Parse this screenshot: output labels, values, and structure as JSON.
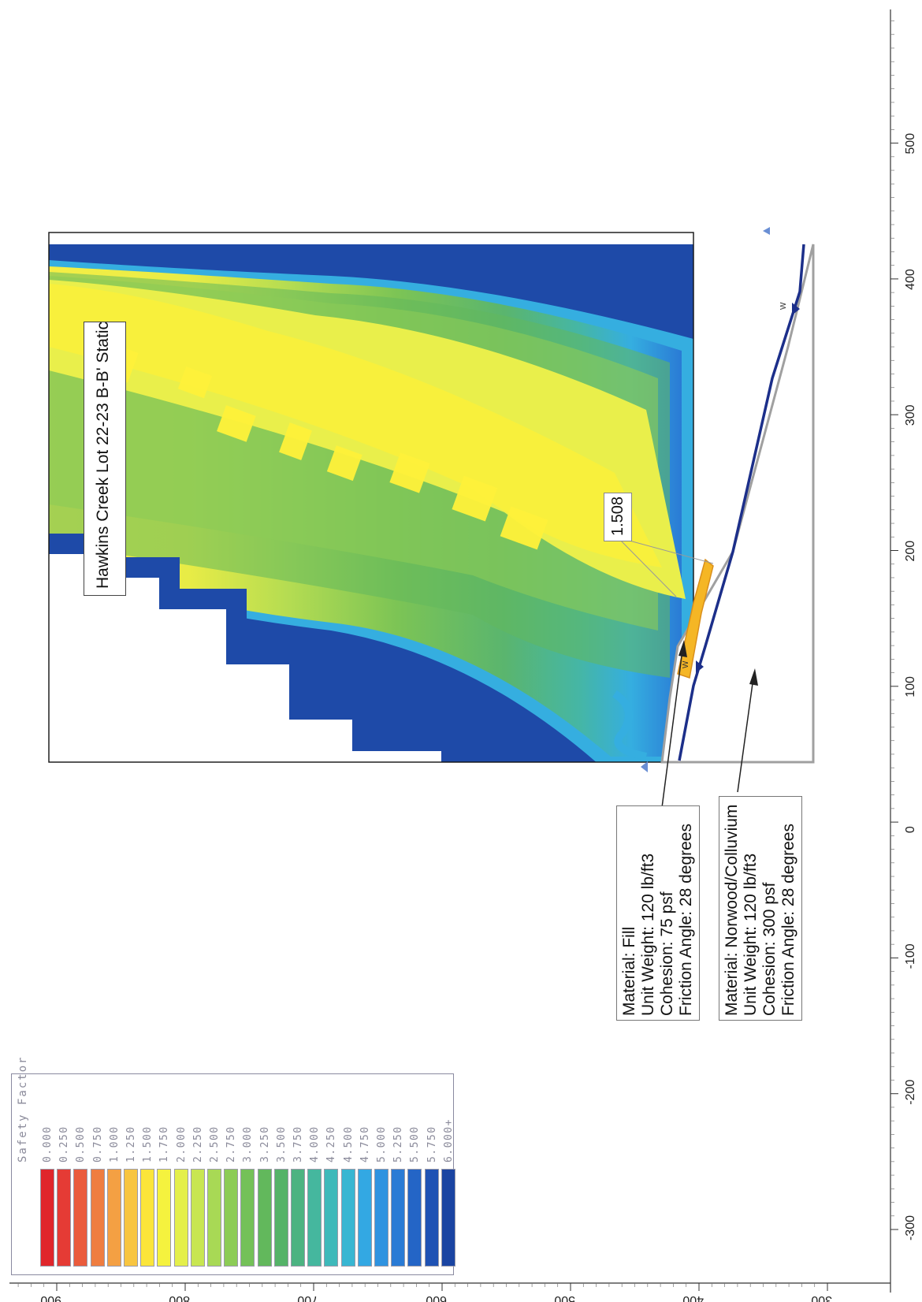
{
  "title": "Hawkins Creek Lot 22-23 B-B' Static",
  "minimum_factor_label": "1.508",
  "legend": {
    "title": "Safety Factor",
    "entries": [
      {
        "label": "0.000",
        "color": "#e0262b"
      },
      {
        "label": "0.250",
        "color": "#e53b35"
      },
      {
        "label": "0.500",
        "color": "#ea5b3c"
      },
      {
        "label": "0.750",
        "color": "#ef7d40"
      },
      {
        "label": "1.000",
        "color": "#f4a043"
      },
      {
        "label": "1.250",
        "color": "#f8c540"
      },
      {
        "label": "1.500",
        "color": "#fbe53a"
      },
      {
        "label": "1.750",
        "color": "#f5f23e"
      },
      {
        "label": "2.000",
        "color": "#e4ef4a"
      },
      {
        "label": "2.250",
        "color": "#c8e651"
      },
      {
        "label": "2.500",
        "color": "#a8d955"
      },
      {
        "label": "2.750",
        "color": "#8ccc56"
      },
      {
        "label": "3.000",
        "color": "#74c158"
      },
      {
        "label": "3.250",
        "color": "#62b85c"
      },
      {
        "label": "3.500",
        "color": "#55b368"
      },
      {
        "label": "3.750",
        "color": "#4cb381"
      },
      {
        "label": "4.000",
        "color": "#45b79e"
      },
      {
        "label": "4.250",
        "color": "#3eb9ba"
      },
      {
        "label": "4.500",
        "color": "#38b6d2"
      },
      {
        "label": "4.750",
        "color": "#33a8e3"
      },
      {
        "label": "5.000",
        "color": "#2f93e0"
      },
      {
        "label": "5.250",
        "color": "#2a7bd5"
      },
      {
        "label": "5.500",
        "color": "#2465c6"
      },
      {
        "label": "5.750",
        "color": "#1f52b4"
      },
      {
        "label": "6.000+",
        "color": "#1a44a2"
      }
    ]
  },
  "materials": [
    {
      "name": "fill",
      "lines": [
        "Material: Fill",
        "Unit Weight: 120 lb/ft3",
        "Cohesion: 75 psf",
        "Friction Angle: 28 degrees"
      ]
    },
    {
      "name": "norwood",
      "lines": [
        "Material: Norwood/Colluvium",
        "Unit Weight: 120 lb/ft3",
        "Cohesion: 300 psf",
        "Friction Angle: 28 degrees"
      ]
    }
  ],
  "axes": {
    "horizontal_ticks": [
      "-300",
      "-200",
      "-100",
      "0",
      "100",
      "200",
      "300",
      "400",
      "500"
    ],
    "vertical_ticks": [
      "300",
      "400",
      "500",
      "600",
      "700",
      "800",
      "900"
    ]
  },
  "water_label": "W",
  "colors": {
    "contour_low": "#fbe53a",
    "contour_high": "#1a44a2",
    "piezometric_line": "#1c2f8a",
    "slope_outline": "#a0a0a0",
    "slip_zone": "#f5b625"
  }
}
